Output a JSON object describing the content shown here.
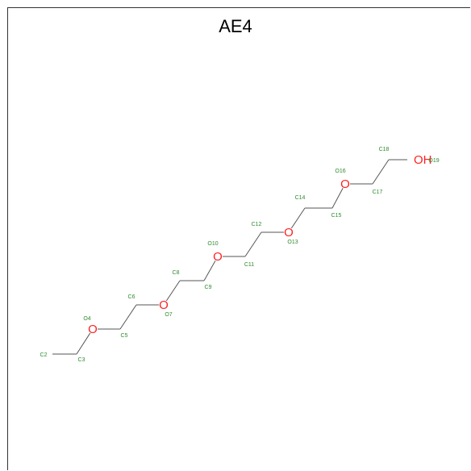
{
  "title": "AE4",
  "colors": {
    "carbon_label": "#2e8b2e",
    "oxygen": "#ff2020",
    "bond": "#555555"
  },
  "molecule": {
    "atoms": [
      {
        "id": "C2",
        "element": "C",
        "label": "C2",
        "symbol": ""
      },
      {
        "id": "C3",
        "element": "C",
        "label": "C3",
        "symbol": ""
      },
      {
        "id": "O4",
        "element": "O",
        "label": "O4",
        "symbol": "O"
      },
      {
        "id": "C5",
        "element": "C",
        "label": "C5",
        "symbol": ""
      },
      {
        "id": "C6",
        "element": "C",
        "label": "C6",
        "symbol": ""
      },
      {
        "id": "O7",
        "element": "O",
        "label": "O7",
        "symbol": "O"
      },
      {
        "id": "C8",
        "element": "C",
        "label": "C8",
        "symbol": ""
      },
      {
        "id": "C9",
        "element": "C",
        "label": "C9",
        "symbol": ""
      },
      {
        "id": "O10",
        "element": "O",
        "label": "O10",
        "symbol": "O"
      },
      {
        "id": "C11",
        "element": "C",
        "label": "C11",
        "symbol": ""
      },
      {
        "id": "C12",
        "element": "C",
        "label": "C12",
        "symbol": ""
      },
      {
        "id": "O13",
        "element": "O",
        "label": "O13",
        "symbol": "O"
      },
      {
        "id": "C14",
        "element": "C",
        "label": "C14",
        "symbol": ""
      },
      {
        "id": "C15",
        "element": "C",
        "label": "C15",
        "symbol": ""
      },
      {
        "id": "O16",
        "element": "O",
        "label": "O16",
        "symbol": "O"
      },
      {
        "id": "C17",
        "element": "C",
        "label": "C17",
        "symbol": ""
      },
      {
        "id": "C18",
        "element": "C",
        "label": "C18",
        "symbol": ""
      },
      {
        "id": "O19",
        "element": "O",
        "label": "O19",
        "symbol": "OH"
      }
    ],
    "bonds": [
      [
        "C2",
        "C3"
      ],
      [
        "C3",
        "O4"
      ],
      [
        "O4",
        "C5"
      ],
      [
        "C5",
        "C6"
      ],
      [
        "C6",
        "O7"
      ],
      [
        "O7",
        "C8"
      ],
      [
        "C8",
        "C9"
      ],
      [
        "C9",
        "O10"
      ],
      [
        "O10",
        "C11"
      ],
      [
        "C11",
        "C12"
      ],
      [
        "C12",
        "O13"
      ],
      [
        "O13",
        "C14"
      ],
      [
        "C14",
        "C15"
      ],
      [
        "C15",
        "O16"
      ],
      [
        "O16",
        "C17"
      ],
      [
        "C17",
        "C18"
      ],
      [
        "C18",
        "O19"
      ]
    ]
  }
}
